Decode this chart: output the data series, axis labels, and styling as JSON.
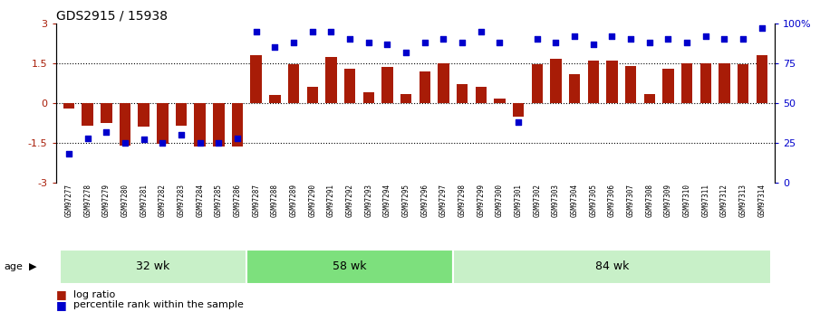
{
  "title": "GDS2915 / 15938",
  "samples": [
    "GSM97277",
    "GSM97278",
    "GSM97279",
    "GSM97280",
    "GSM97281",
    "GSM97282",
    "GSM97283",
    "GSM97284",
    "GSM97285",
    "GSM97286",
    "GSM97287",
    "GSM97288",
    "GSM97289",
    "GSM97290",
    "GSM97291",
    "GSM97292",
    "GSM97293",
    "GSM97294",
    "GSM97295",
    "GSM97296",
    "GSM97297",
    "GSM97298",
    "GSM97299",
    "GSM97300",
    "GSM97301",
    "GSM97302",
    "GSM97303",
    "GSM97304",
    "GSM97305",
    "GSM97306",
    "GSM97307",
    "GSM97308",
    "GSM97309",
    "GSM97310",
    "GSM97311",
    "GSM97312",
    "GSM97313",
    "GSM97314"
  ],
  "log_ratio": [
    -0.2,
    -0.85,
    -0.75,
    -1.6,
    -0.9,
    -1.55,
    -0.85,
    -1.65,
    -1.65,
    -1.65,
    1.8,
    0.3,
    1.45,
    0.6,
    1.75,
    1.3,
    0.4,
    1.35,
    0.35,
    1.2,
    1.5,
    0.7,
    0.6,
    0.15,
    -0.5,
    1.45,
    1.65,
    1.1,
    1.6,
    1.6,
    1.4,
    0.35,
    1.3,
    1.5,
    1.5,
    1.5,
    1.45,
    1.8
  ],
  "percentile": [
    18,
    28,
    32,
    25,
    27,
    25,
    30,
    25,
    25,
    28,
    95,
    85,
    88,
    95,
    95,
    90,
    88,
    87,
    82,
    88,
    90,
    88,
    95,
    88,
    38,
    90,
    88,
    92,
    87,
    92,
    90,
    88,
    90,
    88,
    92,
    90,
    90,
    97
  ],
  "groups": [
    {
      "label": "32 wk",
      "start": 0,
      "end": 10,
      "color": "#c8f0c8"
    },
    {
      "label": "58 wk",
      "start": 10,
      "end": 21,
      "color": "#7de07d"
    },
    {
      "label": "84 wk",
      "start": 21,
      "end": 38,
      "color": "#c8f0c8"
    }
  ],
  "bar_color": "#a81c07",
  "dot_color": "#0000cc",
  "ylim_left": [
    -3,
    3
  ],
  "ylim_right": [
    0,
    100
  ],
  "left_yticks": [
    -3,
    -1.5,
    0,
    1.5,
    3
  ],
  "right_yticks": [
    0,
    25,
    50,
    75,
    100
  ],
  "right_yticklabels": [
    "0",
    "25",
    "50",
    "75",
    "100%"
  ],
  "legend_bar_label": "log ratio",
  "legend_dot_label": "percentile rank within the sample",
  "age_label": "age"
}
